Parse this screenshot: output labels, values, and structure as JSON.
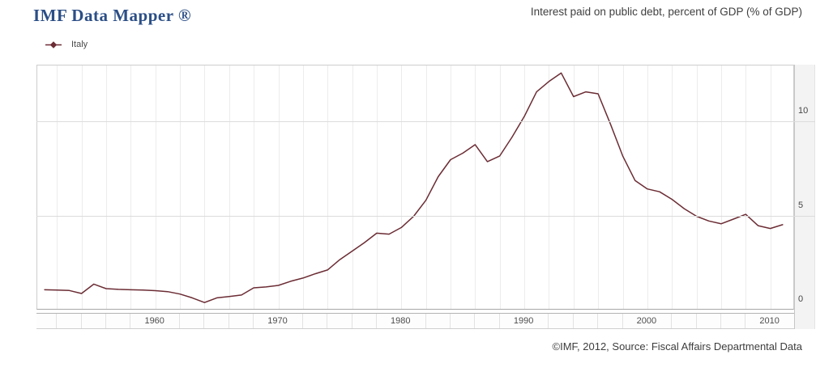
{
  "header": {
    "brand": "IMF Data Mapper ®",
    "chart_title": "Interest paid on public debt, percent of GDP (% of GDP)"
  },
  "legend": {
    "items": [
      {
        "label": "Italy",
        "color": "#6b2c34"
      }
    ]
  },
  "footer": {
    "attribution": "©IMF, 2012, Source: Fiscal Affairs Departmental Data"
  },
  "colors": {
    "brand_text": "#2b4e86",
    "line": "#6b2c34",
    "grid_vertical": "#ececec",
    "grid_horizontal": "#dcdcdc",
    "plot_border": "#cdcdcd",
    "axis_baseline": "#a8a8a8",
    "gutter_bg": "#f3f3f3"
  },
  "chart_data": {
    "type": "line",
    "title": "Interest paid on public debt, percent of GDP (% of GDP)",
    "xlabel": "",
    "ylabel": "",
    "xlim": [
      1950.4,
      2012
    ],
    "ylim": [
      0,
      13
    ],
    "x_ticks_years": [
      1960,
      1970,
      1980,
      1990,
      2000,
      2010
    ],
    "x_tick_labels": [
      "1960",
      "1970",
      "1980",
      "1990",
      "2000",
      "2010"
    ],
    "y_ticks": [
      0,
      5,
      10
    ],
    "grid": {
      "vertical_every_years": 2,
      "vertical_range": [
        1952,
        2010
      ],
      "horizontal_at": [
        5,
        10
      ]
    },
    "legend_position": "top-left",
    "x": [
      1951,
      1952,
      1953,
      1954,
      1955,
      1956,
      1957,
      1958,
      1959,
      1960,
      1961,
      1962,
      1963,
      1964,
      1965,
      1966,
      1967,
      1968,
      1969,
      1970,
      1971,
      1972,
      1973,
      1974,
      1975,
      1976,
      1977,
      1978,
      1979,
      1980,
      1981,
      1982,
      1983,
      1984,
      1985,
      1986,
      1987,
      1988,
      1989,
      1990,
      1991,
      1992,
      1993,
      1994,
      1995,
      1996,
      1997,
      1998,
      1999,
      2000,
      2001,
      2002,
      2003,
      2004,
      2005,
      2006,
      2007,
      2008,
      2009,
      2010,
      2011
    ],
    "series": [
      {
        "name": "Italy",
        "color": "#6b2c34",
        "values": [
          1.1,
          1.08,
          1.06,
          0.9,
          1.4,
          1.16,
          1.12,
          1.1,
          1.08,
          1.05,
          1.0,
          0.87,
          0.67,
          0.42,
          0.67,
          0.74,
          0.82,
          1.2,
          1.25,
          1.33,
          1.55,
          1.72,
          1.95,
          2.15,
          2.7,
          3.15,
          3.6,
          4.1,
          4.05,
          4.4,
          5.0,
          5.85,
          7.1,
          8.0,
          8.35,
          8.8,
          7.9,
          8.2,
          9.2,
          10.3,
          11.6,
          12.15,
          12.6,
          11.35,
          11.6,
          11.5,
          9.9,
          8.2,
          6.9,
          6.45,
          6.3,
          5.9,
          5.4,
          5.0,
          4.75,
          4.6,
          4.85,
          5.1,
          4.5,
          4.35,
          4.55
        ]
      }
    ]
  }
}
